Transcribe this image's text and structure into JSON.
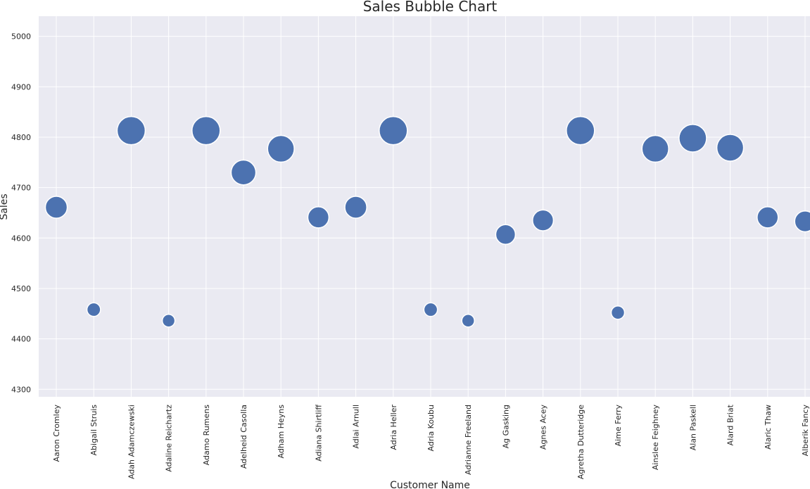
{
  "chart_data": {
    "type": "scatter",
    "title": "Sales Bubble Chart",
    "xlabel": "Customer Name",
    "ylabel": "Sales",
    "categories": [
      "Aaron Cromley",
      "Abigail Struis",
      "Adah Adamczewski",
      "Adaline Reichartz",
      "Adamo Rumens",
      "Adelheid Casolla",
      "Adham Heyns",
      "Adiana Shirtliff",
      "Adlai Arnull",
      "Adria Heller",
      "Adria Koubu",
      "Adrianne Freeland",
      "Ag Gasking",
      "Agnes Acey",
      "Agretha Dutteridge",
      "Aime Ferry",
      "Ainslee Feighney",
      "Alan Paskell",
      "Alard Briat",
      "Alaric Thaw",
      "Alberik Fancy"
    ],
    "values": [
      4661,
      4458,
      4813,
      4436,
      4813,
      4730,
      4777,
      4641,
      4661,
      4813,
      4458,
      4436,
      4607,
      4635,
      4813,
      4452,
      4777,
      4798,
      4779,
      4641,
      4633
    ],
    "sizes": [
      4661,
      4458,
      4813,
      4436,
      4813,
      4730,
      4777,
      4641,
      4661,
      4813,
      4458,
      4436,
      4607,
      4635,
      4813,
      4452,
      4777,
      4798,
      4779,
      4641,
      4633
    ],
    "yticks": [
      4300,
      4400,
      4500,
      4600,
      4700,
      4800,
      4900,
      5000
    ],
    "ylim": [
      4285,
      5040
    ],
    "grid": true,
    "colors": {
      "background": "#eaeaf2",
      "grid": "#ffffff",
      "bubble": "#4c72b0",
      "bubble_edge": "#ffffff"
    }
  }
}
